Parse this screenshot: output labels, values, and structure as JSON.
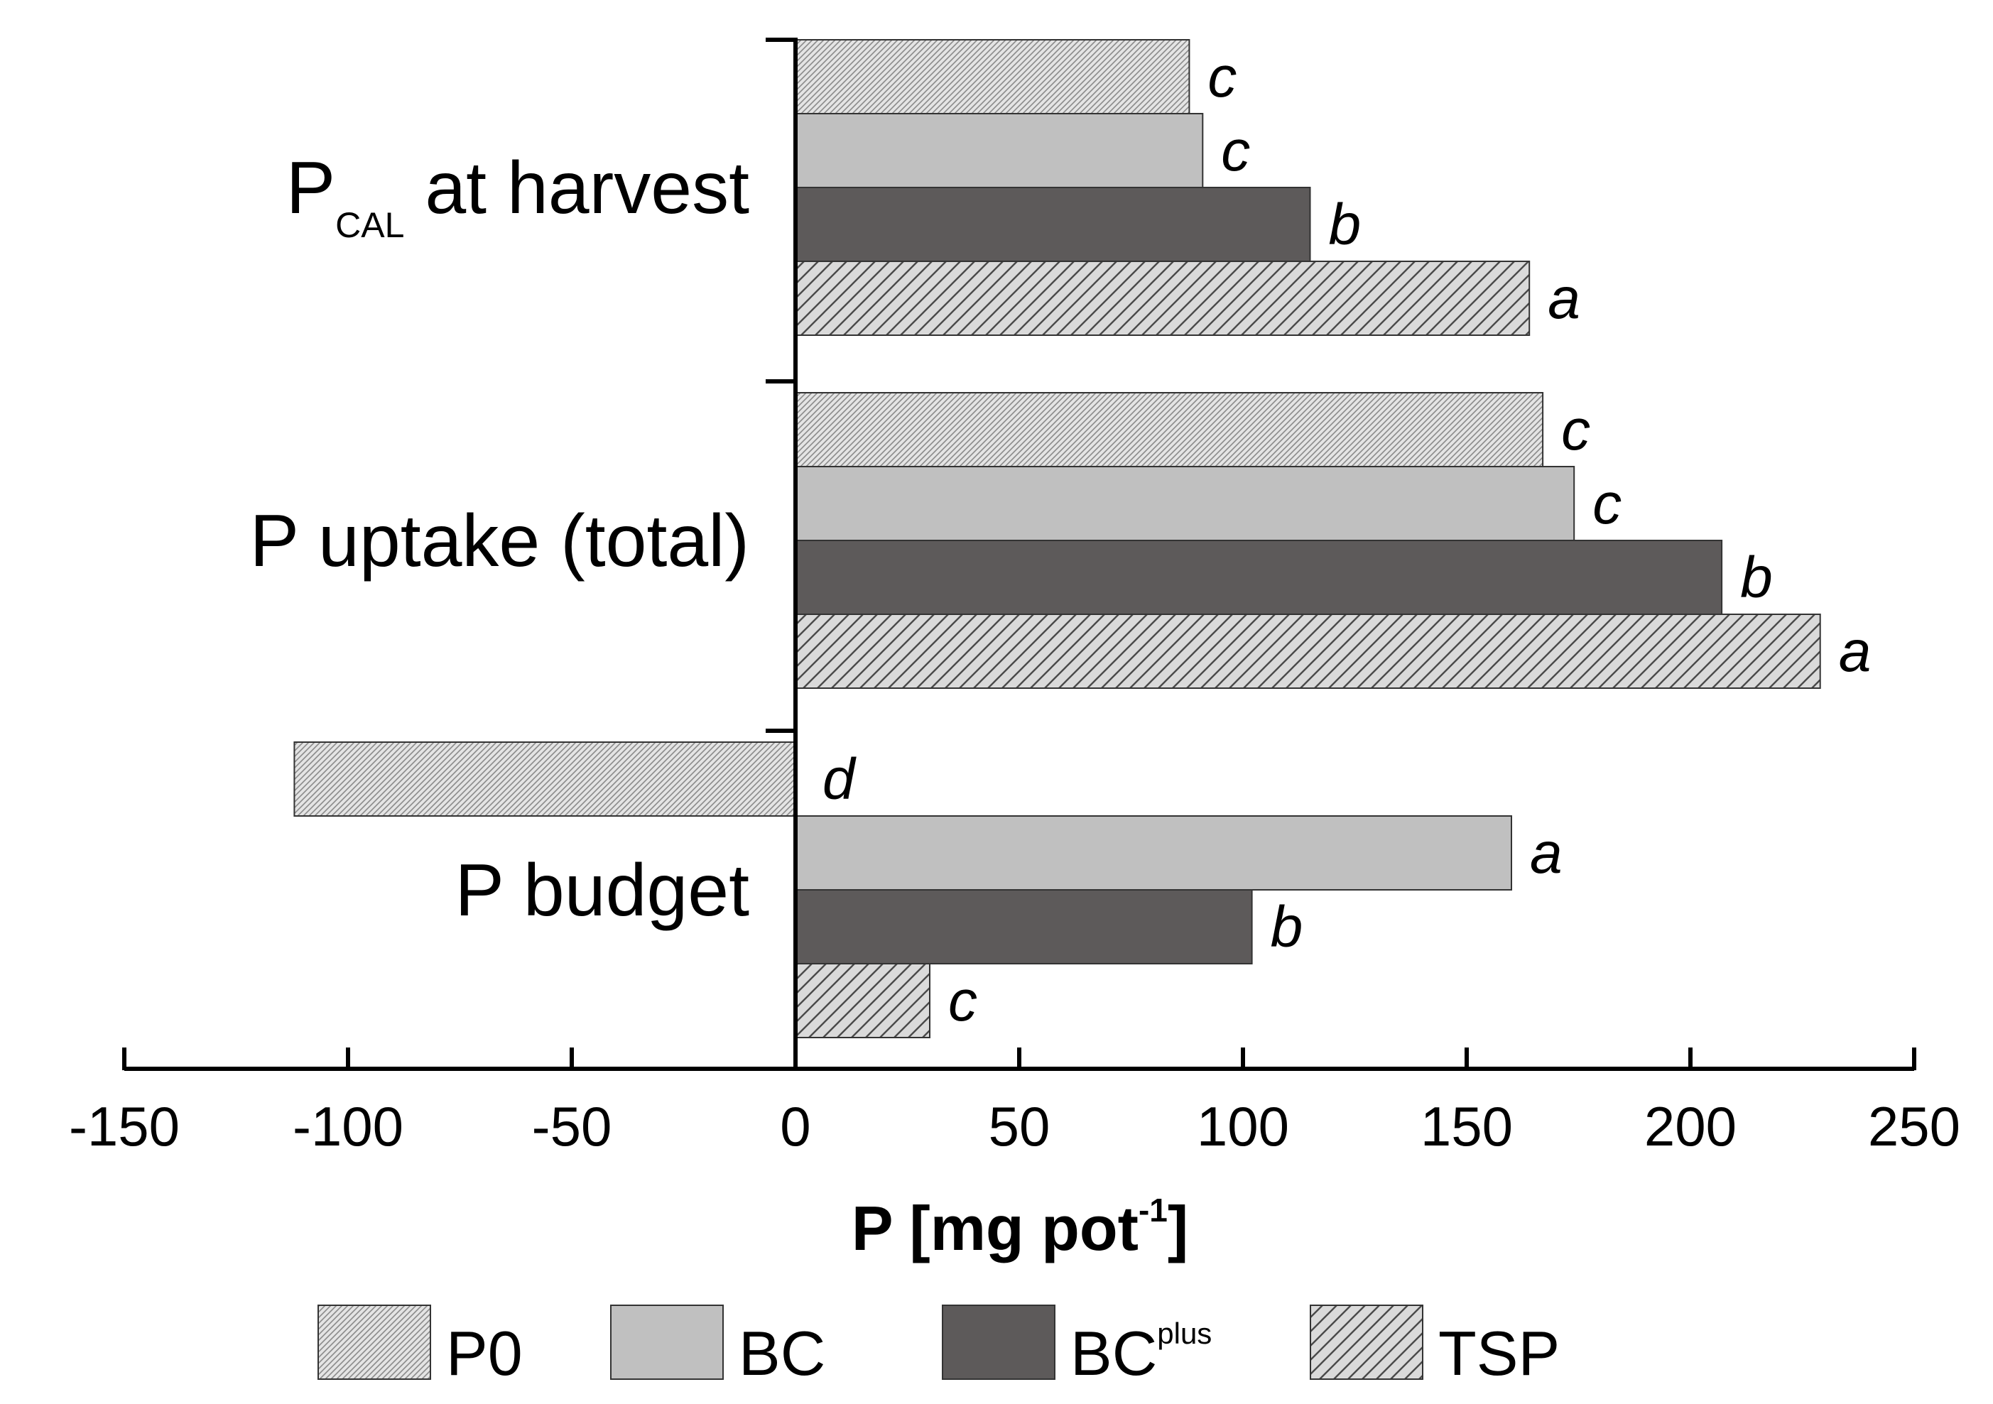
{
  "chart_data": {
    "type": "bar",
    "orientation": "horizontal",
    "title": "",
    "xlabel": "P [mg pot-1]",
    "xlabel_main": "P [mg pot",
    "xlabel_sup": "-1",
    "xlabel_close": "]",
    "ylabel": "",
    "xlim": [
      -150,
      250
    ],
    "xticks": [
      -150,
      -100,
      -50,
      0,
      50,
      100,
      150,
      200,
      250
    ],
    "grid": false,
    "legend_position": "bottom",
    "categories": [
      {
        "id": "pcal",
        "label": "P",
        "label_sub": "CAL",
        "label_rest": " at harvest"
      },
      {
        "id": "uptake",
        "label": "P uptake (total)"
      },
      {
        "id": "budget",
        "label": "P budget"
      }
    ],
    "series": [
      {
        "name": "P0",
        "name_base": "P0",
        "name_sup": "",
        "color": "#d6d6d6",
        "pattern": "dense-hatch",
        "values": [
          88,
          167,
          -112
        ],
        "letters": [
          "c",
          "c",
          "d"
        ]
      },
      {
        "name": "BC",
        "name_base": "BC",
        "name_sup": "",
        "color": "#c0c0c0",
        "pattern": "solid",
        "values": [
          91,
          174,
          160
        ],
        "letters": [
          "c",
          "c",
          "a"
        ]
      },
      {
        "name": "BCplus",
        "name_base": "BC",
        "name_sup": "plus",
        "color": "#5d5a5a",
        "pattern": "solid",
        "values": [
          115,
          207,
          102
        ],
        "letters": [
          "b",
          "b",
          "b"
        ]
      },
      {
        "name": "TSP",
        "name_base": "TSP",
        "name_sup": "",
        "color": "#d9d9d9",
        "pattern": "diagonal-hatch",
        "values": [
          164,
          229,
          30
        ],
        "letters": [
          "a",
          "a",
          "c"
        ]
      }
    ]
  }
}
